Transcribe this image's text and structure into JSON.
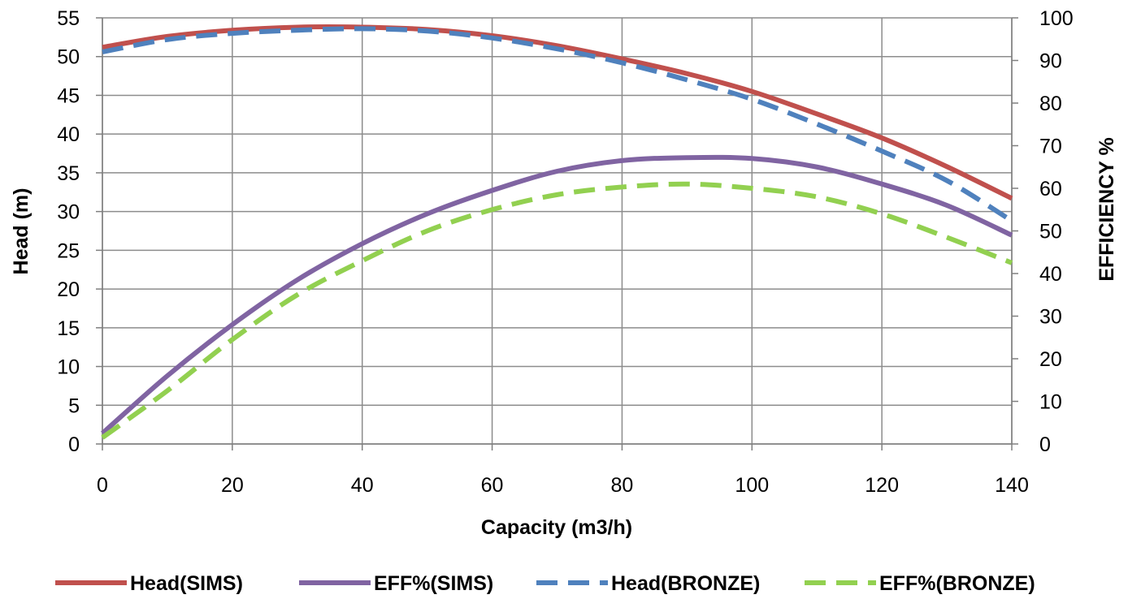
{
  "chart_data": {
    "type": "line",
    "title": "",
    "xlabel": "Capacity (m3/h)",
    "ylabel": "Head (m)",
    "y2label": "EFFICIENCY %",
    "xlim": [
      0,
      140
    ],
    "ylim": [
      0,
      55
    ],
    "y2lim": [
      0,
      100
    ],
    "x_ticks": [
      0,
      20,
      40,
      60,
      80,
      100,
      120,
      140
    ],
    "y_ticks": [
      0,
      5,
      10,
      15,
      20,
      25,
      30,
      35,
      40,
      45,
      50,
      55
    ],
    "y2_ticks": [
      0,
      10,
      20,
      30,
      40,
      50,
      60,
      70,
      80,
      90,
      100
    ],
    "grid": true,
    "legend_position": "bottom",
    "x": [
      0,
      10,
      20,
      30,
      40,
      50,
      60,
      70,
      80,
      90,
      100,
      110,
      120,
      130,
      140
    ],
    "series": [
      {
        "name": "Head(SIMS)",
        "axis": "left",
        "color": "#C0504D",
        "dash": "solid",
        "values": [
          51.2,
          52.6,
          53.4,
          53.8,
          53.8,
          53.5,
          52.7,
          51.4,
          49.7,
          47.8,
          45.5,
          42.6,
          39.5,
          35.8,
          31.7
        ]
      },
      {
        "name": "EFF%(SIMS)",
        "axis": "right",
        "color": "#8064A2",
        "dash": "solid",
        "values": [
          2.5,
          16,
          28,
          38.5,
          47,
          54,
          59.5,
          64,
          66.5,
          67.2,
          67,
          65,
          61,
          56,
          49
        ]
      },
      {
        "name": "Head(BRONZE)",
        "axis": "left",
        "color": "#4F81BD",
        "dash": "dash",
        "values": [
          50.6,
          52.2,
          53.0,
          53.4,
          53.6,
          53.3,
          52.4,
          51.0,
          49.2,
          47.0,
          44.5,
          41.3,
          37.8,
          34.0,
          28.8
        ]
      },
      {
        "name": "EFF%(BRONZE)",
        "axis": "right",
        "color": "#92D050",
        "dash": "dash",
        "values": [
          1.5,
          12.5,
          24.5,
          35,
          43,
          50,
          55,
          58.5,
          60.3,
          61,
          60,
          58,
          54,
          48.5,
          42.5
        ]
      }
    ]
  }
}
